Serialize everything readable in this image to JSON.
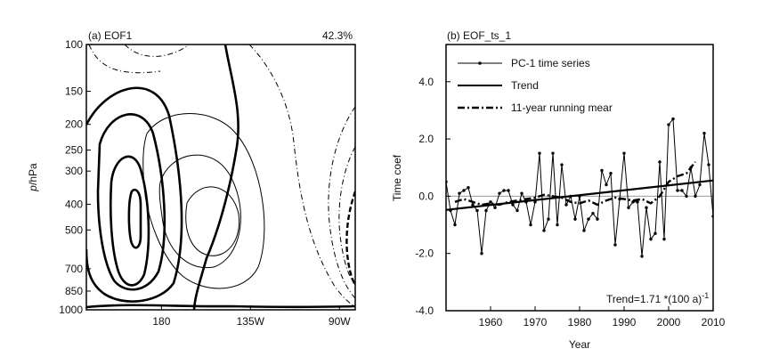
{
  "chart_data": [
    {
      "type": "contour",
      "panel_label": "(a)  EOF1",
      "variance_label": "42.3%",
      "ylabel_italic": "p",
      "ylabel_rest": "/hPa",
      "y_scale": "log",
      "y_reversed": true,
      "ylim": [
        100,
        1000
      ],
      "yticks": [
        100,
        150,
        200,
        250,
        300,
        400,
        500,
        700,
        850,
        1000
      ],
      "xticks": [
        {
          "value": 180,
          "label": "180"
        },
        {
          "value": 225,
          "label": "135W"
        },
        {
          "value": 270,
          "label": "90W"
        }
      ],
      "xlim": [
        142,
        278
      ]
    },
    {
      "type": "line",
      "panel_label": "(b)  EOF_ts_1",
      "xlabel": "Year",
      "ylabel": "Time coef",
      "xlim": [
        1950,
        2010
      ],
      "ylim": [
        -4.0,
        5.3
      ],
      "xticks": [
        1960,
        1970,
        1980,
        1990,
        2000,
        2010
      ],
      "yticks": [
        {
          "value": -4.0,
          "label": "-4.0"
        },
        {
          "value": -2.0,
          "label": "-2.0"
        },
        {
          "value": 0.0,
          "label": "0.0"
        },
        {
          "value": 2.0,
          "label": "2.0"
        },
        {
          "value": 4.0,
          "label": "4.0"
        }
      ],
      "annotation": "Trend=1.71 *(100 a)",
      "annotation_sup": "-1",
      "series": [
        {
          "name": "PC-1 time series",
          "style": "line-dots",
          "x": [
            1950,
            1951,
            1952,
            1953,
            1954,
            1955,
            1956,
            1957,
            1958,
            1959,
            1960,
            1961,
            1962,
            1963,
            1964,
            1965,
            1966,
            1967,
            1968,
            1969,
            1970,
            1971,
            1972,
            1973,
            1974,
            1975,
            1976,
            1977,
            1978,
            1979,
            1980,
            1981,
            1982,
            1983,
            1984,
            1985,
            1986,
            1987,
            1988,
            1989,
            1990,
            1991,
            1992,
            1993,
            1994,
            1995,
            1996,
            1997,
            1998,
            1999,
            2000,
            2001,
            2002,
            2003,
            2004,
            2005,
            2006,
            2007,
            2008,
            2009,
            2010
          ],
          "values": [
            0.5,
            -0.5,
            -1.0,
            0.1,
            0.2,
            0.3,
            -0.3,
            -0.5,
            -2.0,
            -0.5,
            -0.2,
            -0.4,
            0.1,
            0.2,
            0.2,
            -0.3,
            -0.5,
            0.1,
            -0.2,
            -1.0,
            -0.2,
            1.5,
            -1.2,
            -0.8,
            1.5,
            -1.0,
            1.1,
            -0.3,
            0.0,
            -0.8,
            0.0,
            -1.2,
            -0.8,
            -0.6,
            -0.8,
            0.9,
            0.4,
            0.8,
            -1.7,
            -0.1,
            1.5,
            -0.4,
            -0.2,
            -0.2,
            -2.1,
            -0.4,
            -1.5,
            -1.3,
            1.2,
            -1.5,
            2.5,
            2.7,
            0.2,
            0.2,
            0.0,
            1.0,
            0.0,
            0.4,
            2.2,
            1.1,
            -0.7
          ]
        },
        {
          "name": "Trend",
          "style": "solid-thick",
          "x": [
            1950,
            2010
          ],
          "values": [
            -0.48,
            0.55
          ]
        },
        {
          "name": "11-year running mear",
          "style": "dash-dot-thick",
          "x": [
            1952,
            1954,
            1956,
            1958,
            1960,
            1962,
            1964,
            1966,
            1968,
            1970,
            1972,
            1974,
            1976,
            1978,
            1980,
            1982,
            1984,
            1986,
            1988,
            1990,
            1992,
            1994,
            1996,
            1998,
            2000,
            2002,
            2004,
            2006
          ],
          "values": [
            -0.2,
            -0.1,
            -0.2,
            -0.3,
            -0.25,
            -0.3,
            -0.2,
            -0.15,
            -0.1,
            -0.05,
            0.05,
            0.0,
            -0.05,
            -0.2,
            -0.25,
            -0.15,
            -0.3,
            -0.15,
            -0.05,
            -0.1,
            -0.15,
            -0.1,
            -0.25,
            0.0,
            0.5,
            0.7,
            0.8,
            1.2
          ]
        }
      ]
    }
  ]
}
